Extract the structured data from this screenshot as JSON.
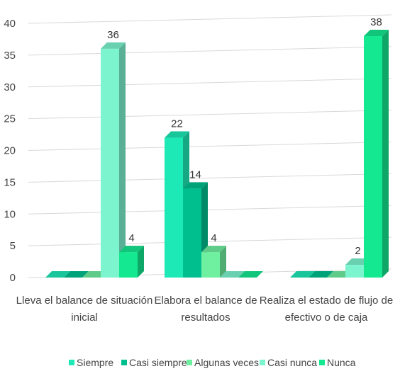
{
  "chart_data": {
    "type": "bar",
    "title": "",
    "xlabel": "",
    "ylabel": "",
    "ylim": [
      0,
      40
    ],
    "yticks": [
      0,
      5,
      10,
      15,
      20,
      25,
      30,
      35,
      40
    ],
    "grid": true,
    "legend_position": "bottom",
    "categories": [
      [
        "Lleva el balance de situación",
        "inicial"
      ],
      [
        "Elabora el balance de",
        "resultados"
      ],
      [
        "Realiza el estado de flujo de",
        "efectivo o de caja"
      ]
    ],
    "series": [
      {
        "name": "Siempre",
        "color": "#1de9b6",
        "values": [
          0,
          22,
          0
        ]
      },
      {
        "name": "Casi siempre",
        "color": "#00bf8f",
        "values": [
          0,
          14,
          0
        ]
      },
      {
        "name": "Algunas veces",
        "color": "#6ef0a0",
        "values": [
          0,
          4,
          0
        ]
      },
      {
        "name": "Casi nunca",
        "color": "#7cf5cf",
        "values": [
          36,
          0,
          2
        ]
      },
      {
        "name": "Nunca",
        "color": "#14e890",
        "values": [
          4,
          0,
          38
        ]
      }
    ],
    "data_labels": [
      {
        "series": 3,
        "category": 0,
        "text": "36"
      },
      {
        "series": 4,
        "category": 0,
        "text": "4"
      },
      {
        "series": 0,
        "category": 1,
        "text": "22"
      },
      {
        "series": 1,
        "category": 1,
        "text": "14"
      },
      {
        "series": 2,
        "category": 1,
        "text": "4"
      },
      {
        "series": 3,
        "category": 2,
        "text": "2"
      },
      {
        "series": 4,
        "category": 2,
        "text": "38"
      }
    ]
  }
}
